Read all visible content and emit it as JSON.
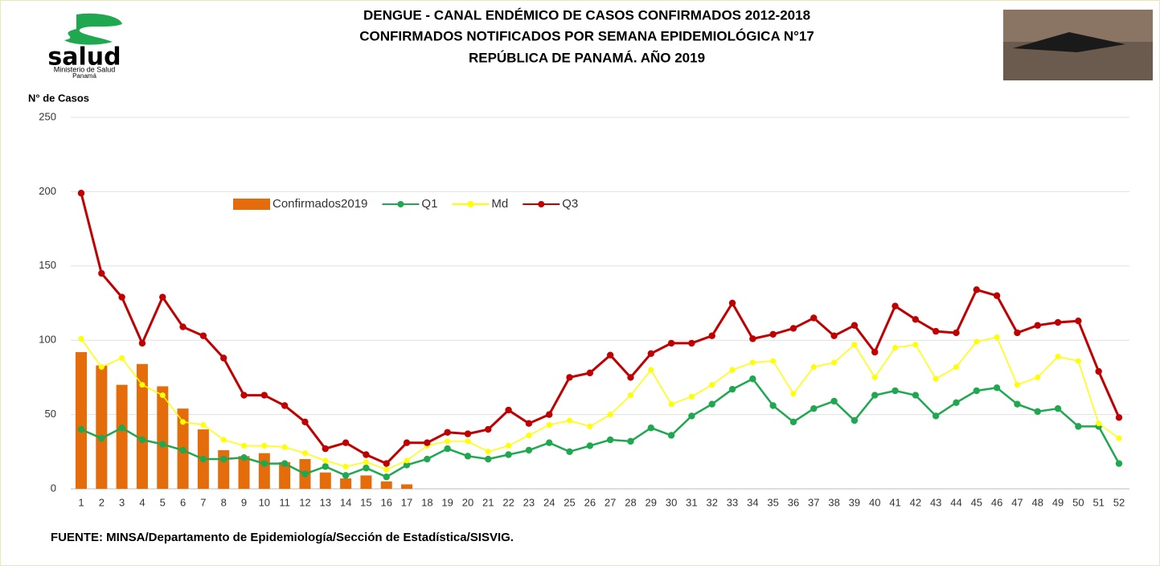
{
  "header": {
    "title": [
      "DENGUE - CANAL ENDÉMICO DE CASOS CONFIRMADOS 2012-2018",
      "CONFIRMADOS NOTIFICADOS POR SEMANA EPIDEMIOLÓGICA N°17",
      "REPÚBLICA DE PANAMÁ. AÑO 2019"
    ],
    "logo_text": "salud",
    "logo_subtext": [
      "Ministerio de Salud",
      "Panamá"
    ]
  },
  "chart_data": {
    "type": "line",
    "y_label": "N° de Casos",
    "categories": [
      1,
      2,
      3,
      4,
      5,
      6,
      7,
      8,
      9,
      10,
      11,
      12,
      13,
      14,
      15,
      16,
      17,
      18,
      19,
      20,
      21,
      22,
      23,
      24,
      25,
      26,
      27,
      28,
      29,
      30,
      31,
      32,
      33,
      34,
      35,
      36,
      37,
      38,
      39,
      40,
      41,
      42,
      43,
      44,
      45,
      46,
      47,
      48,
      49,
      50,
      51,
      52
    ],
    "ylim": [
      0,
      250
    ],
    "yticks": [
      0,
      50,
      100,
      150,
      200,
      250
    ],
    "grid": true,
    "series": [
      {
        "name": "Confirmados2019",
        "type": "bar",
        "color": "#e46c0a",
        "values": [
          92,
          83,
          70,
          84,
          69,
          54,
          40,
          26,
          22,
          24,
          18,
          20,
          11,
          7,
          9,
          5,
          3,
          null,
          null,
          null,
          null,
          null,
          null,
          null,
          null,
          null,
          null,
          null,
          null,
          null,
          null,
          null,
          null,
          null,
          null,
          null,
          null,
          null,
          null,
          null,
          null,
          null,
          null,
          null,
          null,
          null,
          null,
          null,
          null,
          null,
          null,
          null
        ]
      },
      {
        "name": "Q1",
        "type": "line",
        "color": "#1fa84f",
        "values": [
          40,
          34,
          41,
          33,
          30,
          26,
          20,
          20,
          21,
          17,
          17,
          10,
          15,
          9,
          14,
          8,
          16,
          20,
          27,
          22,
          20,
          23,
          26,
          31,
          25,
          29,
          33,
          32,
          41,
          36,
          49,
          57,
          67,
          74,
          56,
          45,
          54,
          59,
          46,
          63,
          66,
          63,
          49,
          58,
          66,
          68,
          57,
          52,
          54,
          42,
          42,
          17
        ]
      },
      {
        "name": "Md",
        "type": "line",
        "color": "#ffff00",
        "values": [
          101,
          82,
          88,
          70,
          63,
          45,
          43,
          33,
          29,
          29,
          28,
          24,
          19,
          15,
          18,
          13,
          19,
          29,
          32,
          32,
          25,
          29,
          36,
          43,
          46,
          42,
          50,
          63,
          80,
          57,
          62,
          70,
          80,
          85,
          86,
          64,
          82,
          85,
          97,
          75,
          95,
          97,
          74,
          82,
          99,
          102,
          70,
          75,
          89,
          86,
          44,
          34
        ]
      },
      {
        "name": "Q3",
        "type": "line",
        "color": "#c00000",
        "values": [
          199,
          145,
          129,
          98,
          129,
          109,
          103,
          88,
          63,
          63,
          56,
          45,
          27,
          31,
          23,
          17,
          31,
          31,
          38,
          37,
          40,
          53,
          44,
          50,
          75,
          78,
          90,
          75,
          91,
          98,
          98,
          103,
          125,
          101,
          104,
          108,
          115,
          103,
          110,
          92,
          123,
          114,
          106,
          105,
          134,
          130,
          105,
          110,
          112,
          113,
          79,
          48
        ]
      }
    ]
  },
  "footer": {
    "source": "FUENTE: MINSA/Departamento de Epidemiología/Sección de Estadística/SISVIG."
  }
}
